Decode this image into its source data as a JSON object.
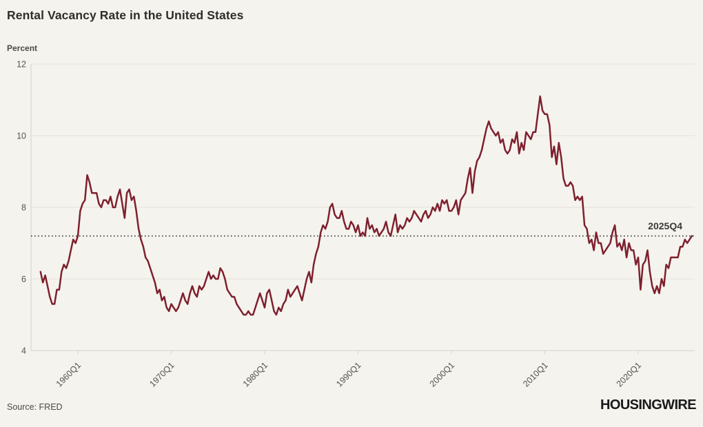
{
  "header": {
    "title": "Rental Vacancy Rate in the United States"
  },
  "chart_data": {
    "type": "line",
    "title": "Rental Vacancy Rate in the United States",
    "ylabel": "Percent",
    "ylim": [
      4,
      12
    ],
    "y_ticks": [
      12,
      10,
      8,
      6,
      4
    ],
    "x_ticks": [
      "1960Q1",
      "1970Q1",
      "1980Q1",
      "1990Q1",
      "2000Q1",
      "2010Q1",
      "2020Q1"
    ],
    "x_start": "1956Q1",
    "x_end": "2025Q4",
    "frequency": "quarterly",
    "grid": "horizontal",
    "legend": "none",
    "reference_line": {
      "value": 7.2,
      "label": "2025Q4",
      "style": "dotted",
      "color": "#3c3c3c"
    },
    "series": [
      {
        "name": "Rental Vacancy Rate",
        "color": "#7e202e",
        "values": [
          6.2,
          5.9,
          6.1,
          5.8,
          5.5,
          5.3,
          5.3,
          5.7,
          5.7,
          6.2,
          6.4,
          6.3,
          6.5,
          6.8,
          7.1,
          7.0,
          7.2,
          7.9,
          8.1,
          8.2,
          8.9,
          8.7,
          8.4,
          8.4,
          8.4,
          8.1,
          8.0,
          8.2,
          8.2,
          8.1,
          8.3,
          8.0,
          8.0,
          8.3,
          8.5,
          8.1,
          7.7,
          8.4,
          8.5,
          8.2,
          8.3,
          7.9,
          7.4,
          7.1,
          6.9,
          6.6,
          6.5,
          6.3,
          6.1,
          5.9,
          5.6,
          5.7,
          5.4,
          5.5,
          5.2,
          5.1,
          5.3,
          5.2,
          5.1,
          5.2,
          5.4,
          5.6,
          5.4,
          5.3,
          5.6,
          5.8,
          5.6,
          5.5,
          5.8,
          5.7,
          5.8,
          6.0,
          6.2,
          6.0,
          6.1,
          6.0,
          6.0,
          6.3,
          6.2,
          6.0,
          5.7,
          5.6,
          5.5,
          5.5,
          5.3,
          5.2,
          5.1,
          5.0,
          5.0,
          5.1,
          5.0,
          5.0,
          5.2,
          5.4,
          5.6,
          5.4,
          5.2,
          5.6,
          5.7,
          5.4,
          5.1,
          5.0,
          5.2,
          5.1,
          5.3,
          5.4,
          5.7,
          5.5,
          5.6,
          5.7,
          5.8,
          5.6,
          5.4,
          5.7,
          6.0,
          6.2,
          5.9,
          6.4,
          6.7,
          6.9,
          7.3,
          7.5,
          7.4,
          7.6,
          8.0,
          8.1,
          7.8,
          7.7,
          7.7,
          7.9,
          7.6,
          7.4,
          7.4,
          7.6,
          7.5,
          7.3,
          7.5,
          7.2,
          7.3,
          7.2,
          7.7,
          7.4,
          7.5,
          7.3,
          7.4,
          7.2,
          7.3,
          7.4,
          7.6,
          7.3,
          7.2,
          7.5,
          7.8,
          7.3,
          7.5,
          7.4,
          7.5,
          7.7,
          7.6,
          7.7,
          7.9,
          7.8,
          7.7,
          7.6,
          7.8,
          7.9,
          7.7,
          7.8,
          8.0,
          7.9,
          8.1,
          7.9,
          8.2,
          8.1,
          8.2,
          7.9,
          7.9,
          8.0,
          8.2,
          7.8,
          8.2,
          8.3,
          8.4,
          8.8,
          9.1,
          8.4,
          9.0,
          9.3,
          9.4,
          9.6,
          9.9,
          10.2,
          10.4,
          10.2,
          10.1,
          10.0,
          10.1,
          9.8,
          9.9,
          9.6,
          9.5,
          9.6,
          9.9,
          9.8,
          10.1,
          9.5,
          9.8,
          9.6,
          10.1,
          10.0,
          9.9,
          10.1,
          10.1,
          10.6,
          11.1,
          10.7,
          10.6,
          10.6,
          10.3,
          9.4,
          9.7,
          9.2,
          9.8,
          9.4,
          8.8,
          8.6,
          8.6,
          8.7,
          8.6,
          8.2,
          8.3,
          8.2,
          8.3,
          7.5,
          7.4,
          7.0,
          7.1,
          6.8,
          7.3,
          7.0,
          7.0,
          6.7,
          6.8,
          6.9,
          7.0,
          7.3,
          7.5,
          6.9,
          7.0,
          6.8,
          7.1,
          6.6,
          7.0,
          6.8,
          6.8,
          6.4,
          6.6,
          5.7,
          6.4,
          6.5,
          6.8,
          6.2,
          5.8,
          5.6,
          5.8,
          5.6,
          6.0,
          5.8,
          6.4,
          6.3,
          6.6,
          6.6,
          6.6,
          6.6,
          6.9,
          6.9,
          7.1,
          7.0,
          7.1,
          7.2
        ]
      }
    ]
  },
  "footer": {
    "source": "Source: FRED",
    "brand": "HOUSINGWIRE"
  },
  "colors": {
    "background": "#f5f3ee",
    "line": "#7e202e",
    "grid": "#e5e2db",
    "axis": "#d5d2cb",
    "tick_text": "#55534f",
    "title": "#2e2d2b",
    "reference": "#3c3c3c"
  }
}
